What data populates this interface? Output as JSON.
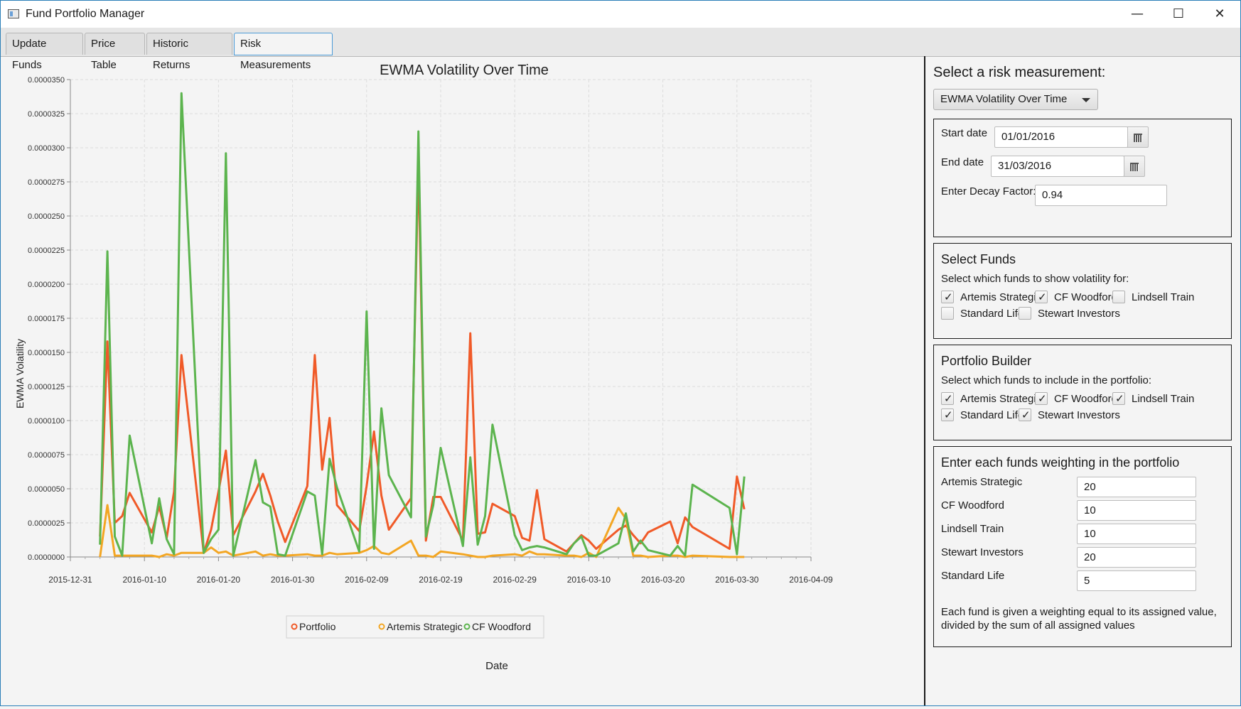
{
  "window": {
    "title": "Fund Portfolio Manager",
    "minimize_glyph": "—",
    "maximize_glyph": "☐",
    "close_glyph": "✕"
  },
  "tabs": [
    {
      "label": "Update Funds",
      "active": false
    },
    {
      "label": "Price Table",
      "active": false
    },
    {
      "label": "Historic Returns",
      "active": false
    },
    {
      "label": "Risk Measurements",
      "active": true
    }
  ],
  "sidebar": {
    "heading": "Select a risk measurement:",
    "measurement_selected": "EWMA Volatility Over Time",
    "dates": {
      "start_label": "Start date",
      "start_value": "01/01/2016",
      "end_label": "End date",
      "end_value": "31/03/2016",
      "decay_label": "Enter Decay Factor:",
      "decay_value": "0.94"
    },
    "select_funds": {
      "heading": "Select Funds",
      "prompt": "Select which funds to show volatility for:",
      "items": [
        {
          "label": "Artemis Strategic",
          "checked": true
        },
        {
          "label": "CF Woodford",
          "checked": true
        },
        {
          "label": "Lindsell Train",
          "checked": false
        },
        {
          "label": "Standard Life",
          "checked": false
        },
        {
          "label": "Stewart Investors",
          "checked": false
        }
      ]
    },
    "portfolio_builder": {
      "heading": "Portfolio Builder",
      "prompt": "Select which funds to include in the portfolio:",
      "items": [
        {
          "label": "Artemis Strategic",
          "checked": true
        },
        {
          "label": "CF Woodford",
          "checked": true
        },
        {
          "label": "Lindsell Train",
          "checked": true
        },
        {
          "label": "Standard Life",
          "checked": true
        },
        {
          "label": "Stewart Investors",
          "checked": true
        }
      ]
    },
    "weights": {
      "heading": "Enter each funds weighting in the portfolio",
      "items": [
        {
          "label": "Artemis Strategic",
          "value": "20"
        },
        {
          "label": "CF Woodford",
          "value": "10"
        },
        {
          "label": "Lindsell Train",
          "value": "10"
        },
        {
          "label": "Stewart Investors",
          "value": "20"
        },
        {
          "label": "Standard Life",
          "value": "5"
        }
      ],
      "note_line1": "Each fund is given a weighting equal to its assigned value,",
      "note_line2": "divided by the sum of all assigned values"
    }
  },
  "chart_data": {
    "type": "line",
    "title": "EWMA Volatility Over Time",
    "xlabel": "Date",
    "ylabel": "EWMA Volatility",
    "x_ticks": [
      "2015-12-31",
      "2016-01-10",
      "2016-01-20",
      "2016-01-30",
      "2016-02-09",
      "2016-02-19",
      "2016-02-29",
      "2016-03-10",
      "2016-03-20",
      "2016-03-30",
      "2016-04-09"
    ],
    "y_ticks": [
      "0.0000000",
      "0.0000025",
      "0.0000050",
      "0.0000075",
      "0.0000100",
      "0.0000125",
      "0.0000150",
      "0.0000175",
      "0.0000200",
      "0.0000225",
      "0.0000250",
      "0.0000275",
      "0.0000300",
      "0.0000325",
      "0.0000350"
    ],
    "xlim": [
      "2015-12-31",
      "2016-04-09"
    ],
    "ylim": [
      0,
      3.5e-05
    ],
    "grid": true,
    "legend_position": "bottom",
    "series": [
      {
        "name": "Portfolio",
        "color": "#f05a28",
        "x": [
          "2016-01-04",
          "2016-01-05",
          "2016-01-06",
          "2016-01-07",
          "2016-01-08",
          "2016-01-11",
          "2016-01-12",
          "2016-01-13",
          "2016-01-14",
          "2016-01-15",
          "2016-01-18",
          "2016-01-19",
          "2016-01-20",
          "2016-01-21",
          "2016-01-22",
          "2016-01-25",
          "2016-01-26",
          "2016-01-27",
          "2016-01-28",
          "2016-01-29",
          "2016-02-01",
          "2016-02-02",
          "2016-02-03",
          "2016-02-04",
          "2016-02-05",
          "2016-02-08",
          "2016-02-09",
          "2016-02-10",
          "2016-02-11",
          "2016-02-12",
          "2016-02-15",
          "2016-02-16",
          "2016-02-17",
          "2016-02-18",
          "2016-02-19",
          "2016-02-22",
          "2016-02-23",
          "2016-02-24",
          "2016-02-25",
          "2016-02-26",
          "2016-02-29",
          "2016-03-01",
          "2016-03-02",
          "2016-03-03",
          "2016-03-04",
          "2016-03-07",
          "2016-03-08",
          "2016-03-09",
          "2016-03-10",
          "2016-03-11",
          "2016-03-14",
          "2016-03-15",
          "2016-03-16",
          "2016-03-17",
          "2016-03-18",
          "2016-03-21",
          "2016-03-22",
          "2016-03-23",
          "2016-03-24",
          "2016-03-29",
          "2016-03-30",
          "2016-03-31"
        ],
        "y": [
          1.5e-06,
          1.58e-05,
          2.5e-06,
          3e-06,
          4.7e-06,
          1.8e-06,
          3.7e-06,
          1.4e-06,
          4.8e-06,
          1.48e-05,
          3e-07,
          2e-06,
          4.8e-06,
          7.8e-06,
          1.6e-06,
          4.8e-06,
          6.1e-06,
          4.5e-06,
          2.6e-06,
          1.1e-06,
          5.2e-06,
          1.48e-05,
          6.4e-06,
          1.02e-05,
          3.8e-06,
          1.9e-06,
          5.2e-06,
          9.2e-06,
          4.5e-06,
          2e-06,
          4.3e-06,
          2.9e-05,
          1.2e-06,
          4.4e-06,
          4.4e-06,
          1.2e-06,
          1.64e-05,
          1.7e-06,
          1.8e-06,
          3.9e-06,
          3e-06,
          1.4e-06,
          1.2e-06,
          4.9e-06,
          1.3e-06,
          4e-07,
          1e-06,
          1.6e-06,
          1.2e-06,
          6e-07,
          2e-06,
          2.3e-06,
          1.6e-06,
          1e-06,
          1.8e-06,
          2.6e-06,
          1e-06,
          2.9e-06,
          2.2e-06,
          6e-07,
          5.9e-06,
          3.5e-06
        ]
      },
      {
        "name": "Artemis Strategic",
        "color": "#f3a623",
        "x": [
          "2016-01-04",
          "2016-01-05",
          "2016-01-06",
          "2016-01-07",
          "2016-01-08",
          "2016-01-11",
          "2016-01-12",
          "2016-01-13",
          "2016-01-14",
          "2016-01-15",
          "2016-01-18",
          "2016-01-19",
          "2016-01-20",
          "2016-01-21",
          "2016-01-22",
          "2016-01-25",
          "2016-01-26",
          "2016-01-27",
          "2016-01-28",
          "2016-01-29",
          "2016-02-01",
          "2016-02-02",
          "2016-02-03",
          "2016-02-04",
          "2016-02-05",
          "2016-02-08",
          "2016-02-09",
          "2016-02-10",
          "2016-02-11",
          "2016-02-12",
          "2016-02-15",
          "2016-02-16",
          "2016-02-17",
          "2016-02-18",
          "2016-02-19",
          "2016-02-22",
          "2016-02-23",
          "2016-02-24",
          "2016-02-25",
          "2016-02-26",
          "2016-02-29",
          "2016-03-01",
          "2016-03-02",
          "2016-03-03",
          "2016-03-04",
          "2016-03-07",
          "2016-03-08",
          "2016-03-09",
          "2016-03-10",
          "2016-03-11",
          "2016-03-14",
          "2016-03-15",
          "2016-03-16",
          "2016-03-17",
          "2016-03-18",
          "2016-03-21",
          "2016-03-22",
          "2016-03-23",
          "2016-03-24",
          "2016-03-29",
          "2016-03-30",
          "2016-03-31"
        ],
        "y": [
          0.0,
          3.8e-06,
          1e-07,
          1e-07,
          1e-07,
          1e-07,
          0.0,
          2e-07,
          1e-07,
          3e-07,
          3e-07,
          7e-07,
          3e-07,
          4e-07,
          1e-07,
          4e-07,
          1e-07,
          2e-07,
          1e-07,
          1e-07,
          2e-07,
          1e-07,
          1e-07,
          3e-07,
          2e-07,
          3e-07,
          5e-07,
          8e-07,
          3e-07,
          2e-07,
          1.2e-06,
          1e-07,
          1e-07,
          0.0,
          4e-07,
          2e-07,
          1e-07,
          0.0,
          0.0,
          1e-07,
          2e-07,
          1e-07,
          4e-07,
          2e-07,
          2e-07,
          1e-07,
          1e-07,
          0.0,
          3e-07,
          0.0,
          3.6e-06,
          2.8e-06,
          1e-07,
          1e-07,
          0.0,
          1e-07,
          1e-07,
          0.0,
          1e-07,
          0.0,
          0.0,
          0.0
        ]
      },
      {
        "name": "CF Woodford",
        "color": "#5cb44e",
        "x": [
          "2016-01-04",
          "2016-01-05",
          "2016-01-06",
          "2016-01-07",
          "2016-01-08",
          "2016-01-11",
          "2016-01-12",
          "2016-01-13",
          "2016-01-14",
          "2016-01-15",
          "2016-01-18",
          "2016-01-19",
          "2016-01-20",
          "2016-01-21",
          "2016-01-22",
          "2016-01-25",
          "2016-01-26",
          "2016-01-27",
          "2016-01-28",
          "2016-01-29",
          "2016-02-01",
          "2016-02-02",
          "2016-02-03",
          "2016-02-04",
          "2016-02-05",
          "2016-02-08",
          "2016-02-09",
          "2016-02-10",
          "2016-02-11",
          "2016-02-12",
          "2016-02-15",
          "2016-02-16",
          "2016-02-17",
          "2016-02-18",
          "2016-02-19",
          "2016-02-22",
          "2016-02-23",
          "2016-02-24",
          "2016-02-25",
          "2016-02-26",
          "2016-02-29",
          "2016-03-01",
          "2016-03-02",
          "2016-03-03",
          "2016-03-04",
          "2016-03-07",
          "2016-03-08",
          "2016-03-09",
          "2016-03-10",
          "2016-03-11",
          "2016-03-14",
          "2016-03-15",
          "2016-03-16",
          "2016-03-17",
          "2016-03-18",
          "2016-03-21",
          "2016-03-22",
          "2016-03-23",
          "2016-03-24",
          "2016-03-29",
          "2016-03-30",
          "2016-03-31"
        ],
        "y": [
          9e-07,
          2.24e-05,
          1.5e-06,
          1e-07,
          8.9e-06,
          1e-06,
          4.3e-06,
          1.3e-06,
          2e-07,
          3.4e-05,
          3e-07,
          1.3e-06,
          2e-06,
          2.96e-05,
          1e-07,
          7.1e-06,
          4e-06,
          3.7e-06,
          2e-07,
          1e-07,
          4.8e-06,
          4.5e-06,
          2e-07,
          7.2e-06,
          5.1e-06,
          4e-07,
          1.8e-05,
          6e-07,
          1.09e-05,
          6e-06,
          2.9e-06,
          3.12e-05,
          1.5e-06,
          3.8e-06,
          8e-06,
          8e-07,
          7.3e-06,
          9e-07,
          3e-06,
          9.7e-06,
          1.6e-06,
          5e-07,
          7e-07,
          8e-07,
          7e-07,
          2e-07,
          1e-06,
          1.5e-06,
          1e-07,
          1e-07,
          1e-06,
          3.2e-06,
          4e-07,
          1.2e-06,
          5e-07,
          1e-07,
          8e-07,
          1e-07,
          5.3e-06,
          3.6e-06,
          2e-07,
          5.9e-06
        ]
      }
    ]
  }
}
